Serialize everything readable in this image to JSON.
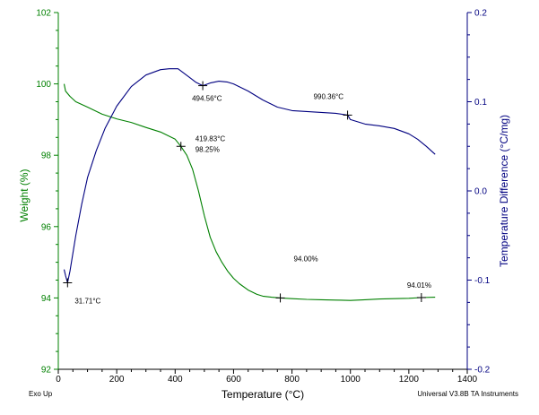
{
  "chart_data": {
    "type": "line",
    "xlabel": "Temperature (°C)",
    "xlim": [
      0,
      1400
    ],
    "x_ticks": [
      0,
      200,
      400,
      600,
      800,
      1000,
      1200,
      1400
    ],
    "y_left": {
      "label": "Weight (%)",
      "lim": [
        92,
        102
      ],
      "ticks": [
        92,
        94,
        96,
        98,
        100,
        102
      ],
      "color": "#008000"
    },
    "y_right": {
      "label": "Temperature Difference (°C/mg)",
      "lim": [
        -0.2,
        0.2
      ],
      "ticks": [
        -0.2,
        -0.1,
        0.0,
        0.1,
        0.2
      ],
      "tick_labels": [
        "-0.2",
        "-0.1",
        "0.0",
        "0.1",
        "0.2"
      ],
      "color": "#000080"
    },
    "series": [
      {
        "axis": "left",
        "color": "#008000",
        "x": [
          20,
          25,
          40,
          60,
          100,
          150,
          200,
          250,
          300,
          350,
          400,
          419.83,
          440,
          460,
          480,
          500,
          520,
          540,
          560,
          580,
          600,
          620,
          650,
          680,
          700,
          730,
          760,
          800,
          850,
          900,
          950,
          1000,
          1050,
          1100,
          1150,
          1200,
          1243,
          1290
        ],
        "y": [
          100.0,
          99.8,
          99.65,
          99.5,
          99.35,
          99.15,
          99.02,
          98.92,
          98.78,
          98.65,
          98.45,
          98.25,
          98.0,
          97.6,
          97.0,
          96.3,
          95.7,
          95.3,
          95.0,
          94.75,
          94.55,
          94.4,
          94.22,
          94.1,
          94.05,
          94.02,
          94.0,
          93.98,
          93.96,
          93.95,
          93.94,
          93.93,
          93.95,
          93.97,
          93.98,
          93.99,
          94.01,
          94.02
        ]
      },
      {
        "axis": "right",
        "color": "#000080",
        "x": [
          20,
          25,
          31.71,
          40,
          60,
          80,
          100,
          130,
          160,
          200,
          250,
          300,
          350,
          380,
          410,
          430,
          450,
          470,
          494.56,
          520,
          550,
          580,
          600,
          650,
          700,
          750,
          800,
          850,
          900,
          950,
          990.36,
          1000,
          1050,
          1100,
          1150,
          1200,
          1230,
          1260,
          1290
        ],
        "y": [
          -0.088,
          -0.095,
          -0.103,
          -0.09,
          -0.05,
          -0.015,
          0.015,
          0.045,
          0.07,
          0.095,
          0.117,
          0.13,
          0.136,
          0.137,
          0.137,
          0.132,
          0.127,
          0.122,
          0.118,
          0.121,
          0.123,
          0.122,
          0.12,
          0.112,
          0.102,
          0.094,
          0.09,
          0.089,
          0.088,
          0.087,
          0.085,
          0.08,
          0.075,
          0.073,
          0.07,
          0.064,
          0.058,
          0.05,
          0.041
        ]
      }
    ],
    "annotations": [
      {
        "text": "31.71°C",
        "x": 31.71,
        "axis": "right",
        "y": -0.103,
        "marker": true
      },
      {
        "text": "494.56°C",
        "x": 494.56,
        "axis": "right",
        "y": 0.118,
        "marker": true
      },
      {
        "text": "990.36°C",
        "x": 990.36,
        "axis": "right",
        "y": 0.085,
        "marker": true
      },
      {
        "text": "419.83°C",
        "x": 419.83,
        "axis": "left",
        "y": 98.25,
        "marker": true
      },
      {
        "text": "98.25%",
        "x": 419.83,
        "axis": "left",
        "y": 98.25,
        "marker": false
      },
      {
        "text": "94.00%",
        "x": 760,
        "axis": "left",
        "y": 94.0,
        "marker": true
      },
      {
        "text": "94.01%",
        "x": 1243,
        "axis": "left",
        "y": 94.01,
        "marker": true
      }
    ],
    "footer_left": "Exo Up",
    "footer_right": "Universal V3.8B TA Instruments"
  }
}
